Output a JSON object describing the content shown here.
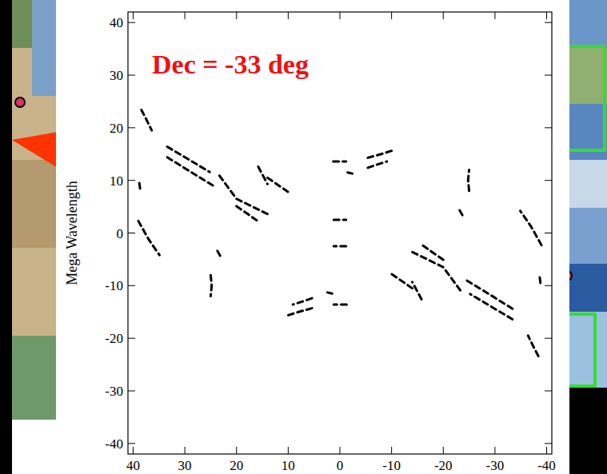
{
  "chart_data": {
    "type": "line",
    "title": "Dec = -33 deg",
    "y_label": "Mega Wavelength",
    "xlim": [
      41,
      -41
    ],
    "ylim": [
      -42,
      42
    ],
    "xticks": [
      40,
      30,
      20,
      10,
      0,
      -10,
      -20,
      -30,
      -40
    ],
    "yticks": [
      -40,
      -30,
      -20,
      -10,
      0,
      10,
      20,
      30,
      40
    ],
    "grid": false,
    "color": "#000000",
    "line_style": "dashed",
    "series": [
      {
        "x": [
          38.4,
          37.4,
          36.4
        ],
        "values": [
          23.4,
          21.5,
          19.5
        ]
      },
      {
        "x": [
          -38.4,
          -37.4,
          -36.4
        ],
        "values": [
          -23.4,
          -21.5,
          -19.5
        ]
      },
      {
        "x": [
          38.8,
          38.6
        ],
        "values": [
          9.5,
          8.0
        ]
      },
      {
        "x": [
          -38.8,
          -38.6
        ],
        "values": [
          -9.5,
          -8.0
        ]
      },
      {
        "x": [
          39,
          37,
          34.9
        ],
        "values": [
          2.3,
          -1.2,
          -4.2
        ]
      },
      {
        "x": [
          -39,
          -37,
          -34.9
        ],
        "values": [
          -2.3,
          1.2,
          4.2
        ]
      },
      {
        "x": [
          33.4,
          29.3,
          25.2
        ],
        "values": [
          16.4,
          14,
          11.6
        ]
      },
      {
        "x": [
          -33.4,
          -29.3,
          -25.2
        ],
        "values": [
          -16.4,
          -14,
          -11.6
        ]
      },
      {
        "x": [
          33.4,
          29,
          24.5
        ],
        "values": [
          14.4,
          11.7,
          9
        ]
      },
      {
        "x": [
          -33.4,
          -29,
          -24.5
        ],
        "values": [
          -14.4,
          -11.7,
          -9
        ]
      },
      {
        "x": [
          23.3,
          20,
          14
        ],
        "values": [
          10.9,
          6.5,
          3.6
        ]
      },
      {
        "x": [
          -23.3,
          -20,
          -14
        ],
        "values": [
          -10.9,
          -6.5,
          -3.6
        ]
      },
      {
        "x": [
          20,
          15.5
        ],
        "values": [
          5.1,
          2
        ]
      },
      {
        "x": [
          -20,
          -15.5
        ],
        "values": [
          -5.1,
          -2
        ]
      },
      {
        "x": [
          15.8,
          14
        ],
        "values": [
          12.6,
          9.3
        ]
      },
      {
        "x": [
          -15.8,
          -14
        ],
        "values": [
          -12.6,
          -9.3
        ]
      },
      {
        "x": [
          14,
          10
        ],
        "values": [
          10.5,
          7.8
        ]
      },
      {
        "x": [
          -14,
          -10
        ],
        "values": [
          -10.5,
          -7.8
        ]
      },
      {
        "x": [
          25,
          24.8,
          25
        ],
        "values": [
          -8,
          -10,
          -12
        ]
      },
      {
        "x": [
          -25,
          -24.8,
          -25
        ],
        "values": [
          8,
          10,
          12
        ]
      },
      {
        "x": [
          23.7,
          23
        ],
        "values": [
          -3.4,
          -4.6
        ]
      },
      {
        "x": [
          -23.7,
          -23
        ],
        "values": [
          3.4,
          4.6
        ]
      },
      {
        "x": [
          1.3,
          -1.2
        ],
        "values": [
          13.6,
          13.6
        ]
      },
      {
        "x": [
          -1.3,
          1.2
        ],
        "values": [
          -13.6,
          -13.6
        ]
      },
      {
        "x": [
          1.2,
          -1.2
        ],
        "values": [
          2.5,
          2.5
        ]
      },
      {
        "x": [
          -1.2,
          1.2
        ],
        "values": [
          -2.5,
          -2.5
        ]
      },
      {
        "x": [
          2.4,
          1.5
        ],
        "values": [
          -11.3,
          -11.5
        ]
      },
      {
        "x": [
          -2.4,
          -1.5
        ],
        "values": [
          11.3,
          11.5
        ]
      },
      {
        "x": [
          -5.4,
          -8,
          -10.6
        ],
        "values": [
          14.3,
          15,
          15.8
        ]
      },
      {
        "x": [
          5.4,
          8,
          10.6
        ],
        "values": [
          -14.3,
          -15,
          -15.8
        ]
      },
      {
        "x": [
          -5.4,
          -7.2,
          -9.1
        ],
        "values": [
          12.4,
          13,
          13.6
        ]
      },
      {
        "x": [
          5.4,
          7.2,
          9.1
        ],
        "values": [
          -12.4,
          -13,
          -13.6
        ]
      }
    ]
  }
}
